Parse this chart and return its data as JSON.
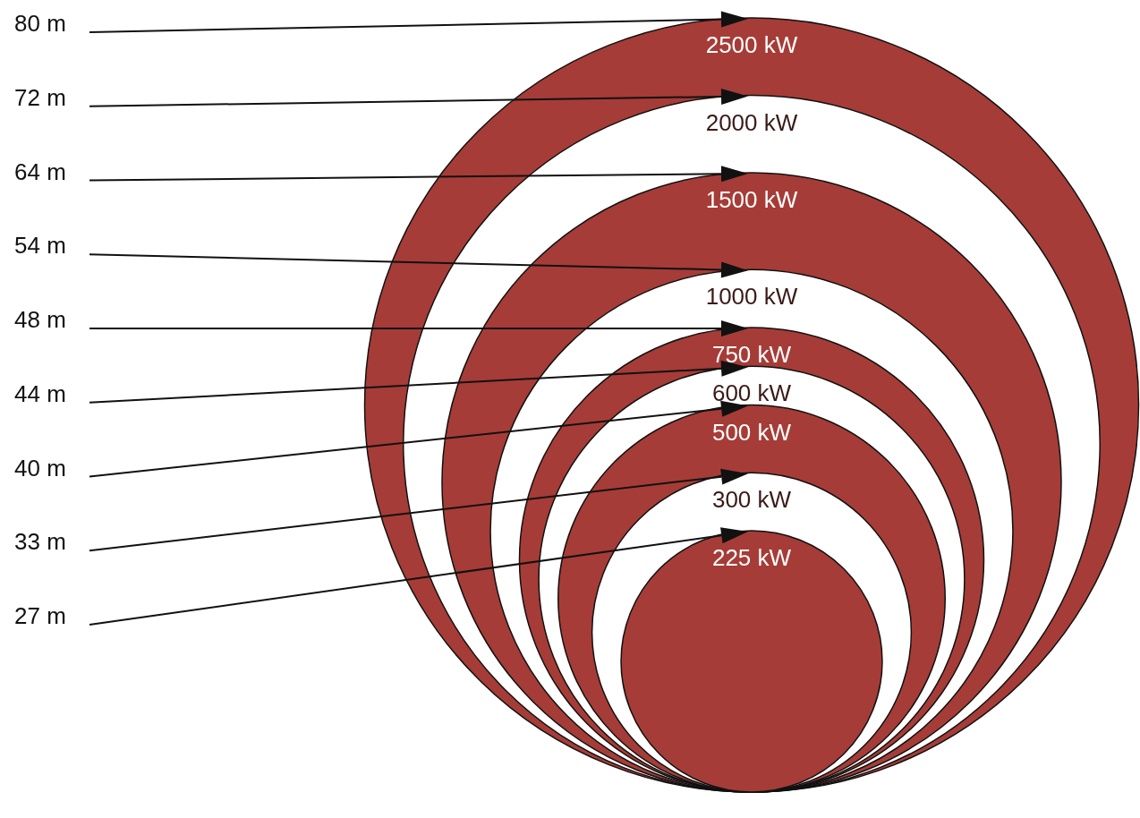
{
  "chart_data": {
    "type": "other",
    "categories": [
      "2500 kW",
      "2000 kW",
      "1500 kW",
      "1000 kW",
      "750 kW",
      "600 kW",
      "500 kW",
      "300 kW",
      "225 kW"
    ],
    "values": [
      80,
      72,
      64,
      54,
      48,
      44,
      40,
      33,
      27
    ],
    "value_labels": [
      "80 m",
      "72 m",
      "64 m",
      "54 m",
      "48 m",
      "44 m",
      "40 m",
      "33 m",
      "27 m"
    ],
    "colors": [
      "#a63c37",
      "#ffffff",
      "#a63c37",
      "#ffffff",
      "#a63c37",
      "#ffffff",
      "#a63c37",
      "#ffffff",
      "#a63c37"
    ]
  }
}
